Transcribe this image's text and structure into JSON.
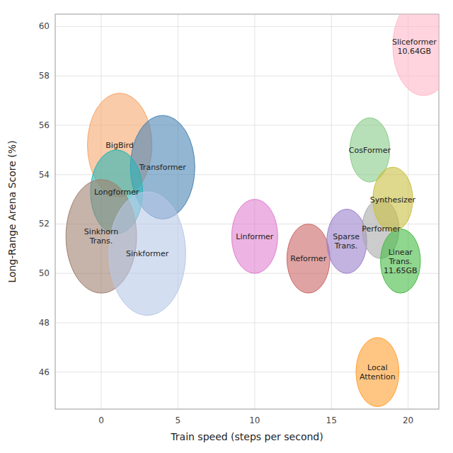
{
  "chart_data": {
    "type": "bubble",
    "xlabel": "Train speed (steps per second)",
    "ylabel": "Long-Range Arena Score (%)",
    "xlim": [
      -3,
      22
    ],
    "ylim": [
      44.5,
      60.5
    ],
    "xticks": [
      0,
      5,
      10,
      15,
      20
    ],
    "yticks": [
      46,
      48,
      50,
      52,
      54,
      56,
      58,
      60
    ],
    "grid": true,
    "categories": [
      "BigBird",
      "Transformer",
      "Longformer",
      "Sinkhorn\nTrans.",
      "Sinkformer",
      "Linformer",
      "Reformer",
      "Sparse\nTrans.",
      "Performer",
      "Linear\nTrans.\n11.65GB",
      "CosFormer",
      "Synthesizer",
      "Local\nAttention",
      "Sliceformer\n10.64GB"
    ],
    "x": [
      1.2,
      4.0,
      1.0,
      0.0,
      3.0,
      10.0,
      13.5,
      16.0,
      18.2,
      19.5,
      17.5,
      19.0,
      18.0,
      21.0
    ],
    "values": [
      55.2,
      54.3,
      53.3,
      51.5,
      50.8,
      51.5,
      50.6,
      51.3,
      51.8,
      50.5,
      55.0,
      53.0,
      46.0,
      59.2
    ],
    "sizes": [
      2.1,
      2.1,
      1.7,
      2.3,
      2.5,
      1.5,
      1.4,
      1.3,
      1.2,
      1.3,
      1.3,
      1.3,
      1.4,
      2.0
    ],
    "colors": [
      "#F5A86E",
      "#4B86B4",
      "#29B5B5",
      "#A08070",
      "#B8C8E8",
      "#E080D0",
      "#CC6666",
      "#9B80CC",
      "#AAAAAA",
      "#44BB44",
      "#88CC88",
      "#C8C040",
      "#FFA030",
      "#FFB8C8"
    ]
  }
}
